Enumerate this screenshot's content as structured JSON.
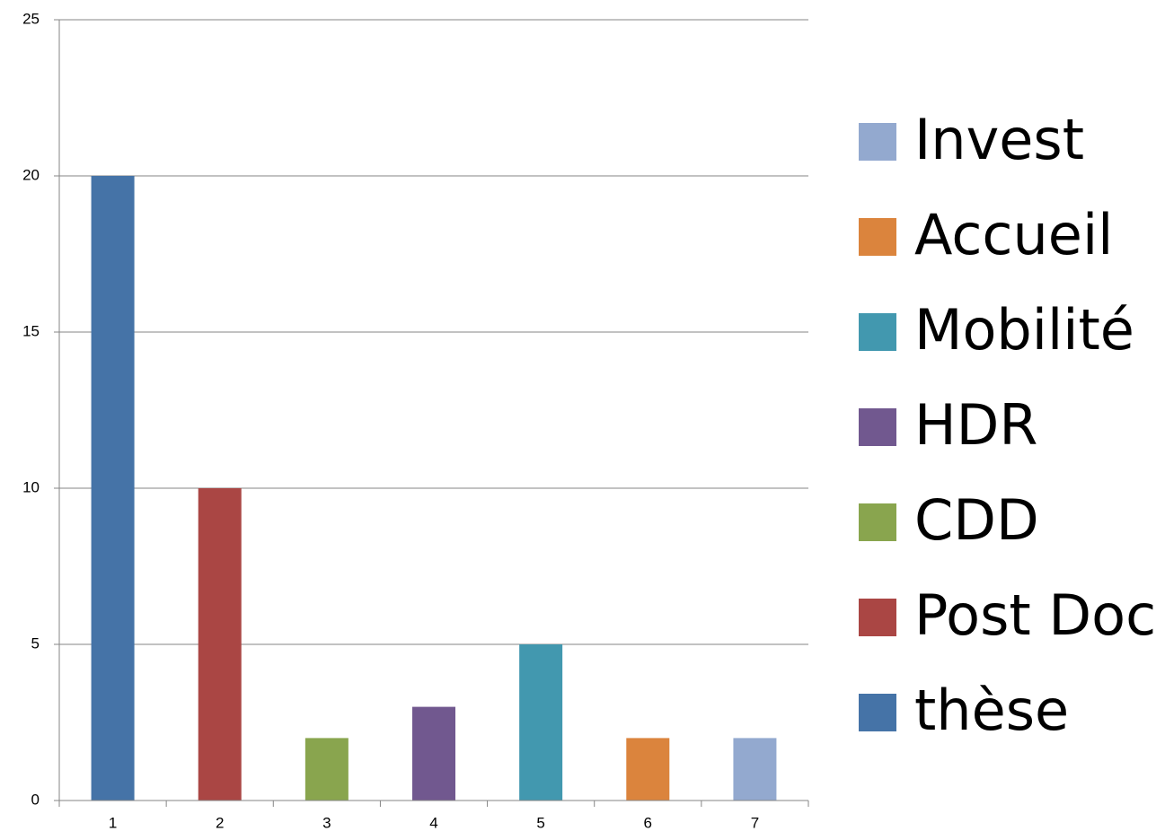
{
  "chart_data": {
    "type": "bar",
    "stacked": true,
    "categories": [
      "1",
      "2",
      "3",
      "4",
      "5",
      "6",
      "7"
    ],
    "series": [
      {
        "name": "thèse",
        "color": "#4573a7",
        "values": [
          20,
          null,
          null,
          null,
          null,
          null,
          null
        ]
      },
      {
        "name": "Post Doc",
        "color": "#aa4644",
        "values": [
          null,
          10,
          null,
          null,
          null,
          null,
          null
        ]
      },
      {
        "name": "CDD",
        "color": "#89a54e",
        "values": [
          null,
          null,
          2,
          null,
          null,
          null,
          null
        ]
      },
      {
        "name": "HDR",
        "color": "#71588f",
        "values": [
          null,
          null,
          null,
          3,
          null,
          null,
          null
        ]
      },
      {
        "name": "Mobilité",
        "color": "#4298af",
        "values": [
          null,
          null,
          null,
          null,
          5,
          null,
          null
        ]
      },
      {
        "name": "Accueil",
        "color": "#db843d",
        "values": [
          null,
          null,
          null,
          null,
          null,
          2,
          null
        ]
      },
      {
        "name": "Invest",
        "color": "#93a9cf",
        "values": [
          null,
          null,
          null,
          null,
          null,
          null,
          2
        ]
      }
    ],
    "ylim": [
      0,
      25
    ],
    "yticks": [
      0,
      5,
      10,
      15,
      20,
      25
    ],
    "grid": true,
    "legend": "right"
  }
}
